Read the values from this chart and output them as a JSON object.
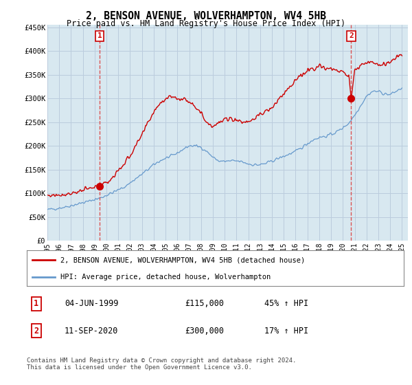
{
  "title": "2, BENSON AVENUE, WOLVERHAMPTON, WV4 5HB",
  "subtitle": "Price paid vs. HM Land Registry's House Price Index (HPI)",
  "legend_line1": "2, BENSON AVENUE, WOLVERHAMPTON, WV4 5HB (detached house)",
  "legend_line2": "HPI: Average price, detached house, Wolverhampton",
  "footnote": "Contains HM Land Registry data © Crown copyright and database right 2024.\nThis data is licensed under the Open Government Licence v3.0.",
  "marker1_label": "1",
  "marker1_date": "04-JUN-1999",
  "marker1_price": "£115,000",
  "marker1_hpi": "45% ↑ HPI",
  "marker2_label": "2",
  "marker2_date": "11-SEP-2020",
  "marker2_price": "£300,000",
  "marker2_hpi": "17% ↑ HPI",
  "red_color": "#CC0000",
  "blue_color": "#6699CC",
  "vline_color": "#DD4444",
  "chart_bg": "#D8E8F0",
  "background_color": "#FFFFFF",
  "grid_color": "#BBCCDD",
  "ylim": [
    0,
    455000
  ],
  "yticks": [
    0,
    50000,
    100000,
    150000,
    200000,
    250000,
    300000,
    350000,
    400000,
    450000
  ],
  "ytick_labels": [
    "£0",
    "£50K",
    "£100K",
    "£150K",
    "£200K",
    "£250K",
    "£300K",
    "£350K",
    "£400K",
    "£450K"
  ],
  "marker1_x": 1999.42,
  "marker1_y": 115000,
  "marker2_x": 2020.7,
  "marker2_y": 300000,
  "vline1_x": 1999.42,
  "vline2_x": 2020.7,
  "xlim": [
    1995.0,
    2025.5
  ],
  "xticks": [
    1995,
    1996,
    1997,
    1998,
    1999,
    2000,
    2001,
    2002,
    2003,
    2004,
    2005,
    2006,
    2007,
    2008,
    2009,
    2010,
    2011,
    2012,
    2013,
    2014,
    2015,
    2016,
    2017,
    2018,
    2019,
    2020,
    2021,
    2022,
    2023,
    2024,
    2025
  ],
  "hpi_x": [
    1995.0,
    1995.5,
    1996.0,
    1996.5,
    1997.0,
    1997.5,
    1998.0,
    1998.5,
    1999.0,
    1999.5,
    2000.0,
    2000.5,
    2001.0,
    2001.5,
    2002.0,
    2002.5,
    2003.0,
    2003.5,
    2004.0,
    2004.5,
    2005.0,
    2005.5,
    2006.0,
    2006.5,
    2007.0,
    2007.5,
    2008.0,
    2008.5,
    2009.0,
    2009.5,
    2010.0,
    2010.5,
    2011.0,
    2011.5,
    2012.0,
    2012.5,
    2013.0,
    2013.5,
    2014.0,
    2014.5,
    2015.0,
    2015.5,
    2016.0,
    2016.5,
    2017.0,
    2017.5,
    2018.0,
    2018.5,
    2019.0,
    2019.5,
    2020.0,
    2020.5,
    2021.0,
    2021.5,
    2022.0,
    2022.5,
    2023.0,
    2023.5,
    2024.0,
    2024.5,
    2025.0
  ],
  "hpi_y": [
    65000,
    67000,
    69000,
    71000,
    74000,
    77000,
    80000,
    83000,
    87000,
    90000,
    96000,
    101000,
    107000,
    113000,
    122000,
    131000,
    140000,
    150000,
    160000,
    168000,
    174000,
    178000,
    185000,
    193000,
    200000,
    200000,
    197000,
    188000,
    176000,
    168000,
    167000,
    168000,
    168000,
    166000,
    162000,
    160000,
    160000,
    163000,
    168000,
    173000,
    178000,
    183000,
    188000,
    196000,
    205000,
    213000,
    218000,
    220000,
    224000,
    230000,
    238000,
    248000,
    265000,
    285000,
    305000,
    315000,
    315000,
    310000,
    308000,
    315000,
    322000
  ],
  "red_x": [
    1995.0,
    1995.5,
    1996.0,
    1996.5,
    1997.0,
    1997.5,
    1998.0,
    1998.5,
    1999.0,
    1999.42,
    1999.5,
    2000.0,
    2000.5,
    2001.0,
    2001.5,
    2002.0,
    2002.5,
    2003.0,
    2003.5,
    2004.0,
    2004.5,
    2005.0,
    2005.5,
    2006.0,
    2006.5,
    2007.0,
    2007.5,
    2008.0,
    2008.5,
    2009.0,
    2009.5,
    2010.0,
    2010.5,
    2011.0,
    2011.5,
    2012.0,
    2012.5,
    2013.0,
    2013.5,
    2014.0,
    2014.5,
    2015.0,
    2015.5,
    2016.0,
    2016.5,
    2017.0,
    2017.5,
    2018.0,
    2018.5,
    2019.0,
    2019.5,
    2020.0,
    2020.5,
    2020.7,
    2021.0,
    2021.5,
    2022.0,
    2022.5,
    2023.0,
    2023.5,
    2024.0,
    2024.5,
    2025.0
  ],
  "red_y": [
    95000,
    96000,
    97000,
    98000,
    100000,
    103000,
    106000,
    109000,
    112000,
    115000,
    117000,
    122000,
    133000,
    148000,
    162000,
    180000,
    200000,
    222000,
    248000,
    272000,
    290000,
    300000,
    305000,
    300000,
    298000,
    295000,
    285000,
    268000,
    250000,
    242000,
    248000,
    255000,
    258000,
    255000,
    250000,
    252000,
    258000,
    265000,
    273000,
    280000,
    295000,
    310000,
    325000,
    338000,
    348000,
    358000,
    365000,
    368000,
    365000,
    362000,
    358000,
    355000,
    348000,
    300000,
    360000,
    370000,
    375000,
    378000,
    372000,
    370000,
    378000,
    385000,
    392000
  ]
}
